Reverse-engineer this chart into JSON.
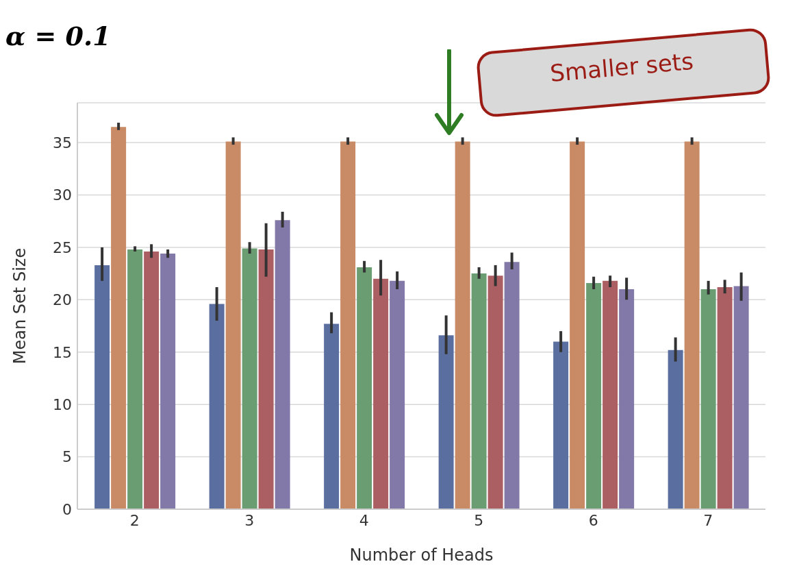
{
  "chart_data": {
    "type": "bar",
    "title": "α = 0.1",
    "xlabel": "Number of Heads",
    "ylabel": "Mean Set Size",
    "categories": [
      "2",
      "3",
      "4",
      "5",
      "6",
      "7"
    ],
    "series": [
      {
        "color": "#5a6fa0",
        "values": [
          23.3,
          19.6,
          17.7,
          16.6,
          16.0,
          15.2
        ],
        "errors": [
          [
            21.8,
            25.0
          ],
          [
            18.0,
            21.2
          ],
          [
            16.8,
            18.8
          ],
          [
            14.8,
            18.5
          ],
          [
            15.0,
            17.0
          ],
          [
            14.1,
            16.4
          ]
        ]
      },
      {
        "color": "#c98b65",
        "values": [
          36.5,
          35.1,
          35.1,
          35.1,
          35.1,
          35.1
        ],
        "errors": [
          [
            36.2,
            36.9
          ],
          [
            34.8,
            35.5
          ],
          [
            34.8,
            35.5
          ],
          [
            34.8,
            35.5
          ],
          [
            34.8,
            35.5
          ],
          [
            34.8,
            35.5
          ]
        ]
      },
      {
        "color": "#6a9e72",
        "values": [
          24.8,
          24.9,
          23.1,
          22.5,
          21.6,
          21.0
        ],
        "errors": [
          [
            24.6,
            25.1
          ],
          [
            24.4,
            25.5
          ],
          [
            22.6,
            23.7
          ],
          [
            22.0,
            23.1
          ],
          [
            21.0,
            22.2
          ],
          [
            20.5,
            21.8
          ]
        ]
      },
      {
        "color": "#ac5f63",
        "values": [
          24.6,
          24.8,
          22.0,
          22.3,
          21.8,
          21.2
        ],
        "errors": [
          [
            24.0,
            25.3
          ],
          [
            22.2,
            27.3
          ],
          [
            20.4,
            23.8
          ],
          [
            21.3,
            23.3
          ],
          [
            21.2,
            22.3
          ],
          [
            20.6,
            21.9
          ]
        ]
      },
      {
        "color": "#8279a8",
        "values": [
          24.4,
          27.6,
          21.8,
          23.6,
          21.0,
          21.3
        ],
        "errors": [
          [
            24.0,
            24.8
          ],
          [
            26.9,
            28.4
          ],
          [
            21.0,
            22.7
          ],
          [
            22.9,
            24.5
          ],
          [
            20.0,
            22.1
          ],
          [
            19.9,
            22.6
          ]
        ]
      }
    ],
    "ylim": [
      0,
      38.8
    ],
    "yticks": [
      0,
      5,
      10,
      15,
      20,
      25,
      30,
      35
    ],
    "grid": "y",
    "annotations": [
      "Smaller sets"
    ]
  }
}
